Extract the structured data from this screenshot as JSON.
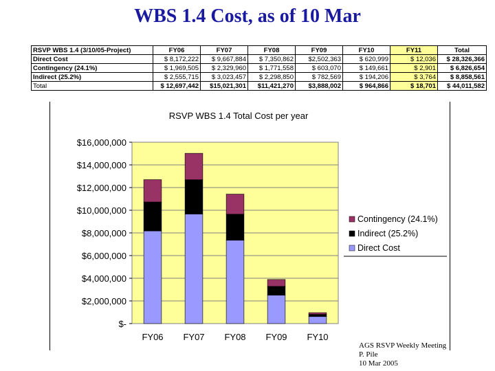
{
  "slide": {
    "title": "WBS 1.4 Cost, as of 10 Mar"
  },
  "table": {
    "header": [
      "RSVP WBS 1.4 (3/10/05-Project)",
      "FY06",
      "FY07",
      "FY08",
      "FY09",
      "FY10",
      "FY11",
      "Total"
    ],
    "rows": [
      {
        "label": "Direct Cost",
        "cells": [
          "$ 8,172,222",
          "$ 9,667,884",
          "$ 7,350,862",
          "$2,502,363",
          "$ 620,999",
          "$ 12,036",
          "$ 28,326,366"
        ]
      },
      {
        "label": "Contingency (24.1%)",
        "cells": [
          "$ 1,969,505",
          "$ 2,329,960",
          "$ 1,771,558",
          "$ 603,070",
          "$ 149,661",
          "$ 2,901",
          "$ 6,826,654"
        ]
      },
      {
        "label": "Indirect (25.2%)",
        "cells": [
          "$ 2,555,715",
          "$ 3,023,457",
          "$ 2,298,850",
          "$ 782,569",
          "$ 194,206",
          "$ 3,764",
          "$ 8,858,561"
        ]
      },
      {
        "label": "Total",
        "cells": [
          "$ 12,697,442",
          "$15,021,301",
          "$11,421,270",
          "$3,888,002",
          "$ 964,866",
          "$ 18,701",
          "$ 44,011,582"
        ]
      }
    ]
  },
  "chart_data": {
    "type": "bar",
    "stacked": true,
    "title": "RSVP WBS 1.4 Total Cost per year",
    "categories": [
      "FY06",
      "FY07",
      "FY08",
      "FY09",
      "FY10"
    ],
    "ylim": [
      0,
      16000000
    ],
    "yticks": [
      0,
      2000000,
      4000000,
      6000000,
      8000000,
      10000000,
      12000000,
      14000000,
      16000000
    ],
    "ytick_labels": [
      "$-",
      "$2,000,000",
      "$4,000,000",
      "$6,000,000",
      "$8,000,000",
      "$10,000,000",
      "$12,000,000",
      "$14,000,000",
      "$16,000,000"
    ],
    "grid": true,
    "legend_position": "right",
    "series": [
      {
        "name": "Direct Cost",
        "color": "#9999ff",
        "values": [
          8172222,
          9667884,
          7350862,
          2502363,
          620999
        ]
      },
      {
        "name": "Indirect (25.2%)",
        "color": "#000000",
        "values": [
          2555715,
          3023457,
          2298850,
          782569,
          194206
        ]
      },
      {
        "name": "Contingency (24.1%)",
        "color": "#993366",
        "values": [
          1969505,
          2329960,
          1771558,
          603070,
          149661
        ]
      }
    ],
    "legend_order": [
      2,
      1,
      0
    ],
    "plot_background": "#ffff99"
  },
  "footer": {
    "lines": [
      "AGS RSVP Weekly Meeting",
      "P. Pile",
      "10 Mar 2005"
    ]
  }
}
